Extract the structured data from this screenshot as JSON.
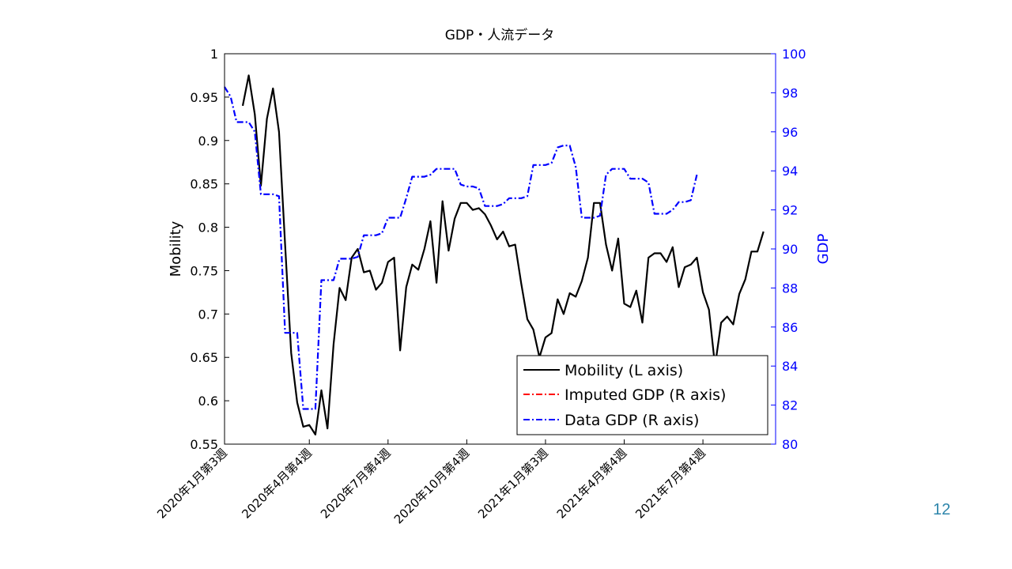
{
  "slide": {
    "page_number": "12"
  },
  "chart_data": {
    "type": "line",
    "title": "GDP・人流データ",
    "ylabel_left": "Mobility",
    "ylabel_right": "GDP",
    "ylim_left": [
      0.55,
      1.0
    ],
    "ylim_right": [
      80,
      100
    ],
    "yticks_left": [
      0.55,
      0.6,
      0.65,
      0.7,
      0.75,
      0.8,
      0.85,
      0.9,
      0.95,
      1
    ],
    "yticks_left_labels": [
      "0.55",
      "0.6",
      "0.65",
      "0.7",
      "0.75",
      "0.8",
      "0.85",
      "0.9",
      "0.95",
      "1"
    ],
    "yticks_right": [
      80,
      82,
      84,
      86,
      88,
      90,
      92,
      94,
      96,
      98,
      100
    ],
    "yticks_right_labels": [
      "80",
      "82",
      "84",
      "86",
      "88",
      "90",
      "92",
      "94",
      "96",
      "98",
      "100"
    ],
    "x_count": 92,
    "xtick_indices": [
      0,
      14,
      27,
      40,
      53,
      66,
      79
    ],
    "xtick_labels": [
      "2020年1月第3週",
      "2020年4月第4週",
      "2020年7月第4週",
      "2020年10月第4週",
      "2021年1月第3週",
      "2021年4月第4週",
      "2021年7月第4週"
    ],
    "legend_position": "bottom-right",
    "colors": {
      "mobility": "#000000",
      "imputed": "#ff0000",
      "data_gdp": "#0000ff",
      "right_axis": "#0000ff"
    },
    "series": [
      {
        "name": "Mobility (L axis)",
        "axis": "left",
        "style": "solid",
        "x_start": 3,
        "values": [
          0.94,
          0.975,
          0.93,
          0.848,
          0.925,
          0.96,
          0.91,
          0.78,
          0.655,
          0.598,
          0.57,
          0.572,
          0.561,
          0.612,
          0.568,
          0.665,
          0.73,
          0.716,
          0.765,
          0.775,
          0.748,
          0.75,
          0.728,
          0.736,
          0.76,
          0.765,
          0.658,
          0.731,
          0.757,
          0.751,
          0.775,
          0.807,
          0.736,
          0.83,
          0.773,
          0.81,
          0.828,
          0.828,
          0.82,
          0.822,
          0.815,
          0.802,
          0.786,
          0.795,
          0.778,
          0.78,
          0.735,
          0.694,
          0.682,
          0.65,
          0.673,
          0.678,
          0.717,
          0.7,
          0.724,
          0.72,
          0.738,
          0.765,
          0.828,
          0.828,
          0.78,
          0.75,
          0.787,
          0.712,
          0.708,
          0.727,
          0.69,
          0.765,
          0.77,
          0.77,
          0.76,
          0.777,
          0.731,
          0.754,
          0.757,
          0.765,
          0.725,
          0.705,
          0.64,
          0.69,
          0.697,
          0.688,
          0.723,
          0.74,
          0.772,
          0.772,
          0.795
        ]
      },
      {
        "name": "Imputed GDP (R axis)",
        "axis": "right",
        "style": "dashdot",
        "x_start": 0,
        "values": []
      },
      {
        "name": "Data GDP (R axis)",
        "axis": "right",
        "style": "dashdot",
        "x_start": 0,
        "values": [
          98.3,
          97.8,
          96.5,
          96.5,
          96.5,
          96.0,
          92.8,
          92.8,
          92.8,
          92.7,
          85.7,
          85.7,
          85.7,
          81.8,
          81.8,
          81.8,
          88.4,
          88.4,
          88.4,
          89.5,
          89.5,
          89.5,
          89.6,
          90.7,
          90.7,
          90.7,
          90.8,
          91.6,
          91.6,
          91.6,
          92.6,
          93.7,
          93.7,
          93.7,
          93.8,
          94.1,
          94.1,
          94.1,
          94.1,
          93.3,
          93.2,
          93.2,
          93.1,
          92.2,
          92.2,
          92.2,
          92.3,
          92.6,
          92.6,
          92.6,
          92.7,
          94.3,
          94.3,
          94.3,
          94.4,
          95.2,
          95.3,
          95.3,
          94.2,
          91.6,
          91.6,
          91.6,
          91.7,
          93.8,
          94.1,
          94.1,
          94.1,
          93.6,
          93.6,
          93.6,
          93.4,
          91.8,
          91.8,
          91.8,
          92.0,
          92.4,
          92.4,
          92.5,
          93.8
        ]
      }
    ]
  }
}
